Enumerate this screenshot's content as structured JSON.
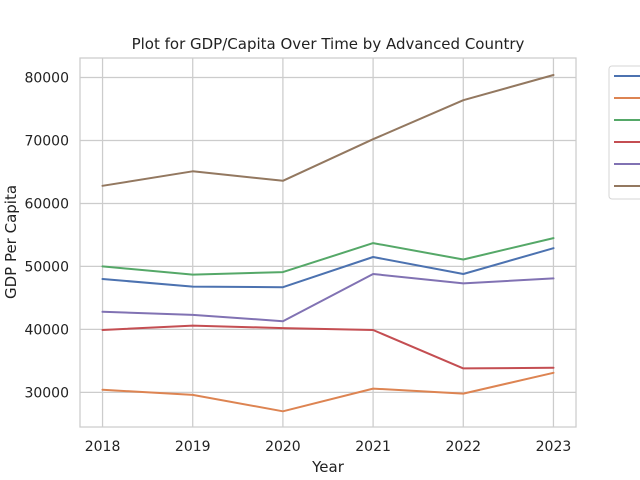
{
  "chart_data": {
    "type": "line",
    "title": "Plot for GDP/Capita Over Time by Advanced Country",
    "xlabel": "Year",
    "ylabel": "GDP Per Capita",
    "x": [
      2018,
      2019,
      2020,
      2021,
      2022,
      2023
    ],
    "xlim": [
      2017.75,
      2023.25
    ],
    "ylim": [
      24500,
      83100
    ],
    "yticks": [
      30000,
      40000,
      50000,
      60000,
      70000,
      80000
    ],
    "grid": true,
    "legend": "outside-right-top",
    "series": [
      {
        "color": "#4c72b0",
        "values": [
          48000,
          46800,
          46700,
          51500,
          48800,
          52900
        ]
      },
      {
        "color": "#dd8452",
        "values": [
          30400,
          29600,
          27000,
          30600,
          29800,
          33100
        ]
      },
      {
        "color": "#55a868",
        "values": [
          50000,
          48700,
          49100,
          53700,
          51100,
          54500
        ]
      },
      {
        "color": "#c44e52",
        "values": [
          39900,
          40600,
          40200,
          39900,
          33800,
          33900
        ]
      },
      {
        "color": "#8172b3",
        "values": [
          42800,
          42300,
          41300,
          48800,
          47300,
          48100
        ]
      },
      {
        "color": "#937860",
        "values": [
          62800,
          65100,
          63600,
          70200,
          76400,
          80400
        ]
      }
    ]
  }
}
